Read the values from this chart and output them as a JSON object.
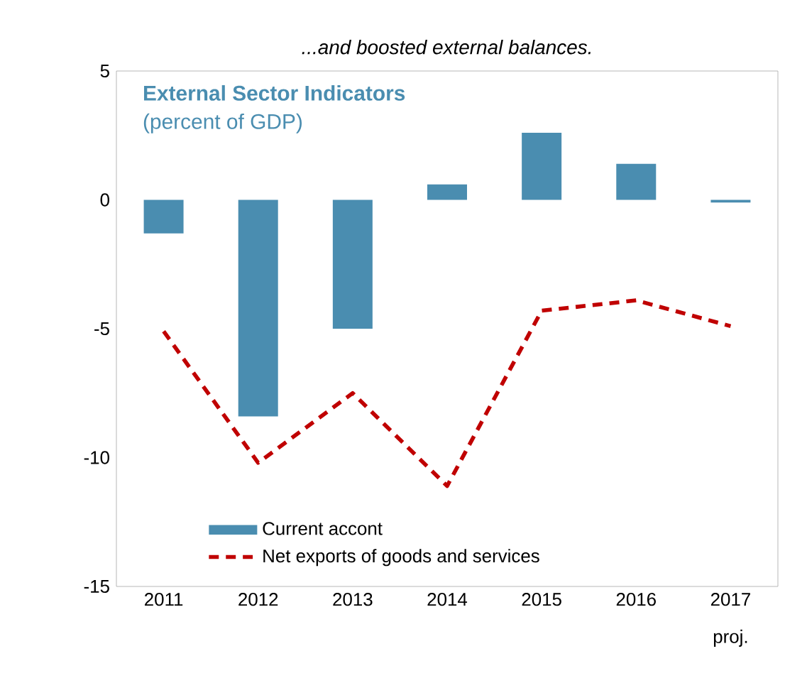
{
  "chart_data": {
    "type": "bar",
    "title": "External Sector Indicators",
    "subtitle": "(percent of GDP)",
    "annotations": [
      "...and boosted external balances.",
      "proj."
    ],
    "categories": [
      "2011",
      "2012",
      "2013",
      "2014",
      "2015",
      "2016",
      "2017"
    ],
    "series": [
      {
        "name": "Current accont",
        "color": "#4a8db0",
        "values": [
          -1.3,
          -8.4,
          -5.0,
          0.6,
          2.6,
          1.4,
          -0.1
        ]
      },
      {
        "name": "Net exports of goods and services",
        "type": "line",
        "color": "#c00000",
        "line_style": "dashed",
        "marker": "none",
        "values": [
          -5.1,
          -10.2,
          -7.5,
          -11.1,
          -4.3,
          -3.9,
          -4.9
        ]
      }
    ],
    "ylim": [
      -15,
      5
    ],
    "yticks": [
      -15,
      -10,
      -5,
      0,
      5
    ],
    "grid": false,
    "legend": "bottom"
  }
}
